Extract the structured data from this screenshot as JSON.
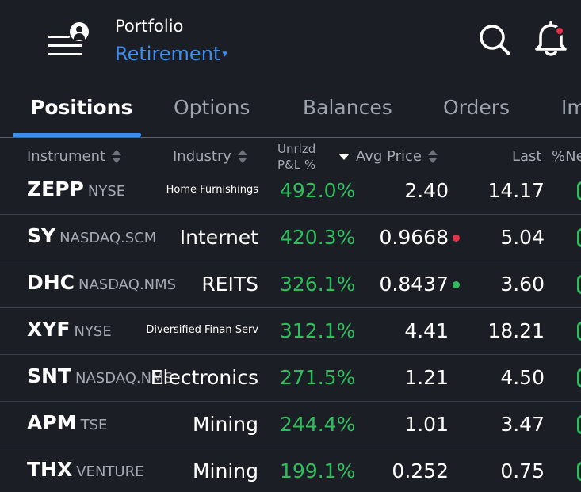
{
  "header": {
    "title_label": "Portfolio",
    "account": "Retirement",
    "caret": "▾",
    "icons": {
      "menu": "menu-user-icon",
      "search": "search-icon",
      "notifications": "bell-icon"
    },
    "notification_dot_color": "#e8334a"
  },
  "tabs": [
    {
      "label": "Positions",
      "active": true
    },
    {
      "label": "Options",
      "active": false
    },
    {
      "label": "Balances",
      "active": false
    },
    {
      "label": "Orders",
      "active": false
    },
    {
      "label": "Im",
      "active": false
    }
  ],
  "columns": {
    "instrument": "Instrument",
    "industry": "Industry",
    "unrlzd_line1": "Unrlzd",
    "unrlzd_line2": "P&L %",
    "avg_price": "Avg Price",
    "last": "Last",
    "pct_net": "%Ne"
  },
  "colors": {
    "accent": "#3d8ef0",
    "positive": "#2fbd5e",
    "negative": "#e8334a",
    "background": "#1b1e24"
  },
  "rows": [
    {
      "symbol": "ZEPP",
      "exchange": "NYSE",
      "industry": "Home Furnishings",
      "industry_size": "small",
      "pnl": "492.0%",
      "avg_price": "2.40",
      "indicator": null,
      "last": "14.17"
    },
    {
      "symbol": "SY",
      "exchange": "NASDAQ.SCM",
      "industry": "Internet",
      "industry_size": "large",
      "pnl": "420.3%",
      "avg_price": "0.9668",
      "indicator": "#e8334a",
      "last": "5.04"
    },
    {
      "symbol": "DHC",
      "exchange": "NASDAQ.NMS",
      "industry": "REITS",
      "industry_size": "large",
      "pnl": "326.1%",
      "avg_price": "0.8437",
      "indicator": "#2fbd5e",
      "last": "3.60"
    },
    {
      "symbol": "XYF",
      "exchange": "NYSE",
      "industry": "Diversified Finan Serv",
      "industry_size": "small",
      "pnl": "312.1%",
      "avg_price": "4.41",
      "indicator": null,
      "last": "18.21"
    },
    {
      "symbol": "SNT",
      "exchange": "NASDAQ.NMS",
      "industry": "Electronics",
      "industry_size": "large",
      "pnl": "271.5%",
      "avg_price": "1.21",
      "indicator": null,
      "last": "4.50"
    },
    {
      "symbol": "APM",
      "exchange": "TSE",
      "industry": "Mining",
      "industry_size": "large",
      "pnl": "244.4%",
      "avg_price": "1.01",
      "indicator": null,
      "last": "3.47"
    },
    {
      "symbol": "THX",
      "exchange": "VENTURE",
      "industry": "Mining",
      "industry_size": "large",
      "pnl": "199.1%",
      "avg_price": "0.252",
      "indicator": null,
      "last": "0.75"
    }
  ]
}
